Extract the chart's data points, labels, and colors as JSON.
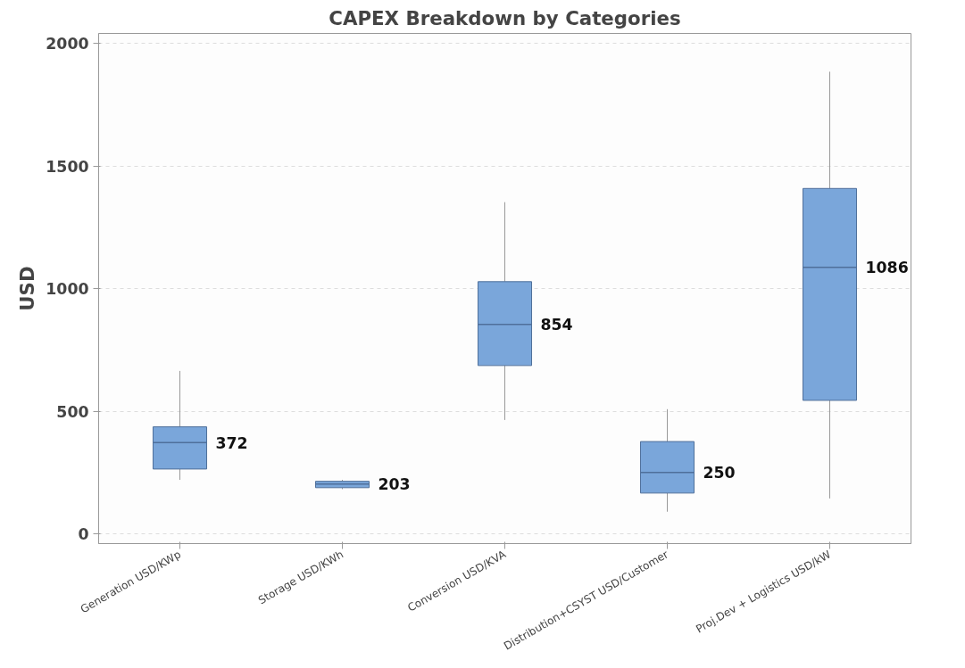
{
  "chart_data": {
    "type": "box",
    "title": "CAPEX Breakdown by Categories",
    "ylabel": "USD",
    "categories": [
      "Generation USD/KWp",
      "Storage USD/KWh",
      "Conversion USD/KVA",
      "Distribution+CSYST USD/Customer",
      "Proj.Dev + Logistics USD/kW"
    ],
    "series": [
      {
        "color": "#7aa6da",
        "value_labels": [
          "372",
          "203",
          "854",
          "250",
          "1086"
        ],
        "boxes": [
          {
            "low": 220,
            "q1": 264,
            "median": 372,
            "q3": 436,
            "high": 664
          },
          {
            "low": 182,
            "q1": 188,
            "median": 203,
            "q3": 214,
            "high": 220
          },
          {
            "low": 464,
            "q1": 686,
            "median": 854,
            "q3": 1028,
            "high": 1352
          },
          {
            "low": 90,
            "q1": 166,
            "median": 250,
            "q3": 376,
            "high": 508
          },
          {
            "low": 144,
            "q1": 544,
            "median": 1086,
            "q3": 1408,
            "high": 1884
          }
        ]
      }
    ],
    "ylim": [
      -40,
      2040
    ],
    "yticks": [
      0,
      500,
      1000,
      1500,
      2000
    ],
    "grid": "y"
  }
}
